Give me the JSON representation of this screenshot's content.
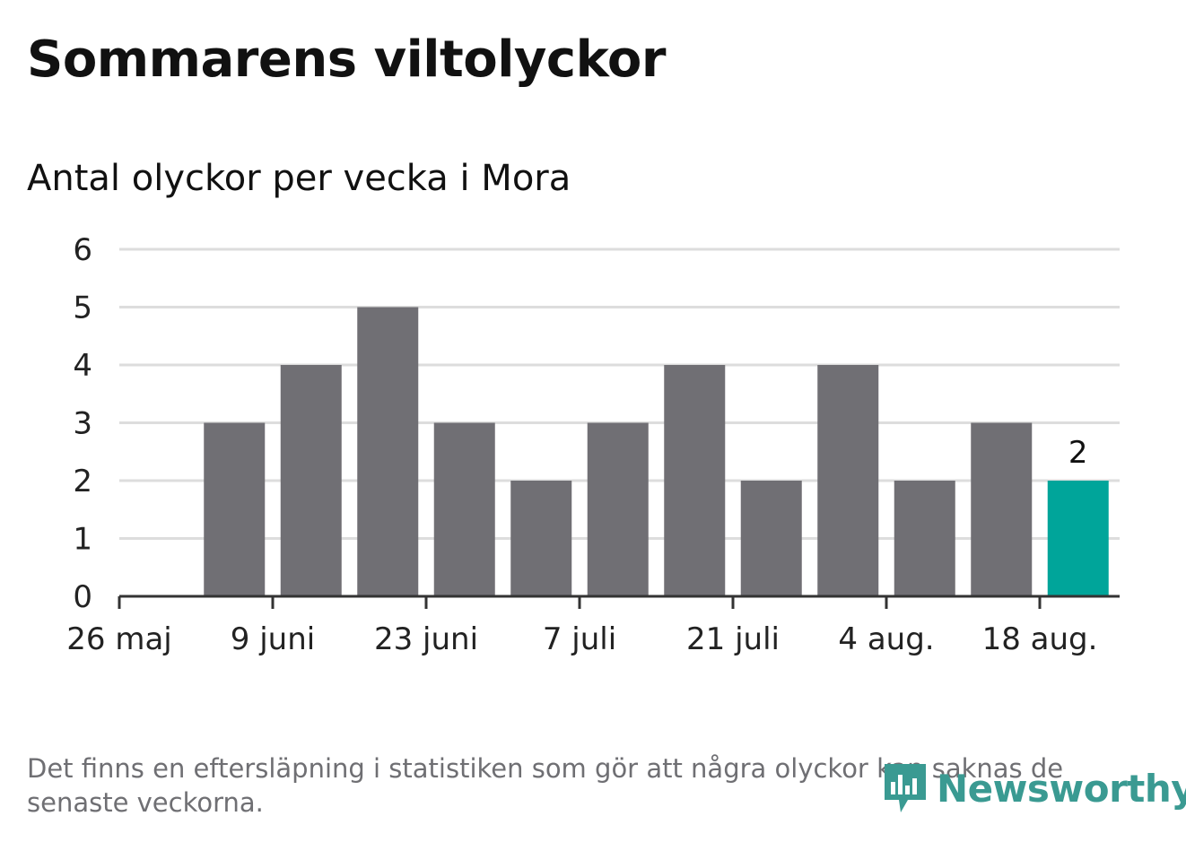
{
  "title": "Sommarens viltolyckor",
  "subtitle": "Antal olyckor per vecka i Mora",
  "footnote": "Det finns en eftersläpning i statistiken som gör att några olyckor kan saknas de senaste veckorna.",
  "logo": {
    "text": "Newsworthy",
    "icon": "newsworthy-bar-chart-icon"
  },
  "colors": {
    "bar": "#706f74",
    "highlight": "#00a59a",
    "grid": "#dddddd",
    "axis": "#333333",
    "brand": "#3a9a92"
  },
  "chart_data": {
    "type": "bar",
    "x": [
      "2024-05-27",
      "2024-06-03",
      "2024-06-10",
      "2024-06-17",
      "2024-06-24",
      "2024-07-01",
      "2024-07-08",
      "2024-07-15",
      "2024-07-22",
      "2024-07-29",
      "2024-08-05",
      "2024-08-12",
      "2024-08-19"
    ],
    "values": [
      null,
      3,
      4,
      5,
      3,
      2,
      3,
      4,
      2,
      4,
      2,
      3,
      2
    ],
    "highlight_index": 12,
    "highlight_label": "2",
    "ylim": [
      0,
      6
    ],
    "yticks": [
      "0",
      "1",
      "2",
      "3",
      "4",
      "5",
      "6"
    ],
    "xticks": [
      "26 maj",
      "9 juni",
      "23 juni",
      "7 juli",
      "21 juli",
      "4 aug.",
      "18 aug."
    ],
    "xlabel": "",
    "ylabel": "",
    "grid": true
  }
}
